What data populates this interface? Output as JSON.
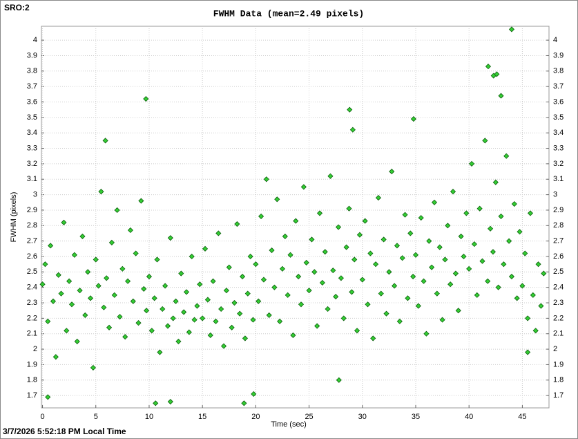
{
  "header": {
    "label": "SRO:2"
  },
  "footer": {
    "label": "3/7/2026 5:52:18 PM Local Time"
  },
  "chart_data": {
    "type": "scatter",
    "title": "FWHM Data (mean=2.49 pixels)",
    "x_label": "Time (sec)",
    "y_label": "FWHM (pixels)",
    "xlim": [
      -0.1,
      47.5
    ],
    "ylim": [
      1.62,
      4.09
    ],
    "xticks": [
      0,
      5,
      10,
      15,
      20,
      25,
      30,
      35,
      40,
      45
    ],
    "yticks": [
      1.7,
      1.8,
      1.9,
      2,
      2.1,
      2.2,
      2.3,
      2.4,
      2.5,
      2.6,
      2.7,
      2.8,
      2.9,
      3,
      3.1,
      3.2,
      3.3,
      3.4,
      3.5,
      3.6,
      3.7,
      3.8,
      3.9,
      4
    ],
    "grid": true,
    "color": "#33cc33",
    "x": [
      0,
      0.25,
      0.5,
      0.75,
      1,
      1.25,
      1.5,
      1.75,
      2,
      2.25,
      2.5,
      2.75,
      3,
      3.25,
      3.5,
      3.75,
      4,
      4.25,
      4.5,
      4.75,
      5,
      5.25,
      5.5,
      5.75,
      6,
      6.25,
      6.5,
      6.75,
      7,
      7.25,
      7.5,
      7.75,
      8,
      8.25,
      8.5,
      8.75,
      9,
      9.25,
      9.5,
      9.75,
      10,
      10.25,
      10.5,
      10.75,
      11,
      11.25,
      11.5,
      11.75,
      12,
      12.25,
      12.5,
      12.75,
      13,
      13.25,
      13.5,
      13.75,
      14,
      14.25,
      14.5,
      14.75,
      15,
      15.25,
      15.5,
      15.75,
      16,
      16.25,
      16.5,
      16.75,
      17,
      17.25,
      17.5,
      17.75,
      18,
      18.25,
      18.5,
      18.75,
      19,
      19.25,
      19.5,
      19.75,
      20,
      20.25,
      20.5,
      20.75,
      21,
      21.25,
      21.5,
      21.75,
      22,
      22.25,
      22.5,
      22.75,
      23,
      23.25,
      23.5,
      23.75,
      24,
      24.25,
      24.5,
      24.75,
      25,
      25.25,
      25.5,
      25.75,
      26,
      26.25,
      26.5,
      26.75,
      27,
      27.25,
      27.5,
      27.75,
      28,
      28.25,
      28.5,
      28.75,
      29,
      29.25,
      29.5,
      29.75,
      30,
      30.25,
      30.5,
      30.75,
      31,
      31.25,
      31.5,
      31.75,
      32,
      32.25,
      32.5,
      32.75,
      33,
      33.25,
      33.5,
      33.75,
      34,
      34.25,
      34.5,
      34.75,
      35,
      35.25,
      35.5,
      35.75,
      36,
      36.25,
      36.5,
      36.75,
      37,
      37.25,
      37.5,
      37.75,
      38,
      38.25,
      38.5,
      38.75,
      39,
      39.25,
      39.5,
      39.75,
      40,
      40.25,
      40.5,
      40.75,
      41,
      41.25,
      41.5,
      41.75,
      42,
      42.25,
      42.5,
      42.75,
      43,
      43.25,
      43.5,
      43.75,
      44,
      44.25,
      44.5,
      44.75,
      45,
      45.25,
      45.5,
      45.75,
      46,
      46.25,
      46.5,
      46.75,
      47,
      44,
      41.8,
      42.3,
      42.6,
      9.7,
      5.9,
      28.8,
      29.1,
      34.8,
      43,
      10.6,
      18.9,
      12,
      0.5,
      19.8,
      27.8,
      45.5
    ],
    "values": [
      2.42,
      2.55,
      2.18,
      2.67,
      2.31,
      1.95,
      2.48,
      2.36,
      2.82,
      2.12,
      2.44,
      2.29,
      2.61,
      2.05,
      2.38,
      2.73,
      2.22,
      2.5,
      2.33,
      1.88,
      2.58,
      2.41,
      3.02,
      2.27,
      2.46,
      2.14,
      2.69,
      2.35,
      2.9,
      2.21,
      2.52,
      2.08,
      2.44,
      2.77,
      2.31,
      2.62,
      2.17,
      2.96,
      2.39,
      2.25,
      2.47,
      2.12,
      2.33,
      2.58,
      1.98,
      2.26,
      2.41,
      2.15,
      2.72,
      2.2,
      2.31,
      2.05,
      2.49,
      2.24,
      2.37,
      2.11,
      2.6,
      2.19,
      2.28,
      2.42,
      2.2,
      2.65,
      2.32,
      2.09,
      2.44,
      2.18,
      2.75,
      2.26,
      2.02,
      2.38,
      2.53,
      2.14,
      2.3,
      2.81,
      2.23,
      2.47,
      2.07,
      2.36,
      2.6,
      2.19,
      2.55,
      2.31,
      2.86,
      2.45,
      3.1,
      2.22,
      2.64,
      2.4,
      2.97,
      2.18,
      2.52,
      2.73,
      2.35,
      2.61,
      2.09,
      2.83,
      2.47,
      2.29,
      3.05,
      2.56,
      2.38,
      2.71,
      2.5,
      2.15,
      2.88,
      2.43,
      2.63,
      2.26,
      3.12,
      2.51,
      2.34,
      2.79,
      2.46,
      2.2,
      2.66,
      2.91,
      2.37,
      2.58,
      2.12,
      2.74,
      2.45,
      2.83,
      2.29,
      2.62,
      2.07,
      2.55,
      2.98,
      2.36,
      2.71,
      2.23,
      2.5,
      3.15,
      2.41,
      2.67,
      2.18,
      2.59,
      2.87,
      2.33,
      2.75,
      2.47,
      2.61,
      2.28,
      2.85,
      2.44,
      2.1,
      2.7,
      2.53,
      2.95,
      2.36,
      2.66,
      2.19,
      2.58,
      2.8,
      2.42,
      3.02,
      2.49,
      2.25,
      2.73,
      2.6,
      2.88,
      2.52,
      3.2,
      2.68,
      2.35,
      2.91,
      2.57,
      3.35,
      2.44,
      2.78,
      2.63,
      3.08,
      2.4,
      2.86,
      2.55,
      3.25,
      2.7,
      2.47,
      2.94,
      2.33,
      2.76,
      2.41,
      2.62,
      2.2,
      2.88,
      2.35,
      2.12,
      2.55,
      2.28,
      2.49,
      4.07,
      3.83,
      3.77,
      3.78,
      3.62,
      3.35,
      3.55,
      3.42,
      3.49,
      3.64,
      1.65,
      1.65,
      1.66,
      1.69,
      1.71,
      1.8,
      1.98
    ]
  }
}
